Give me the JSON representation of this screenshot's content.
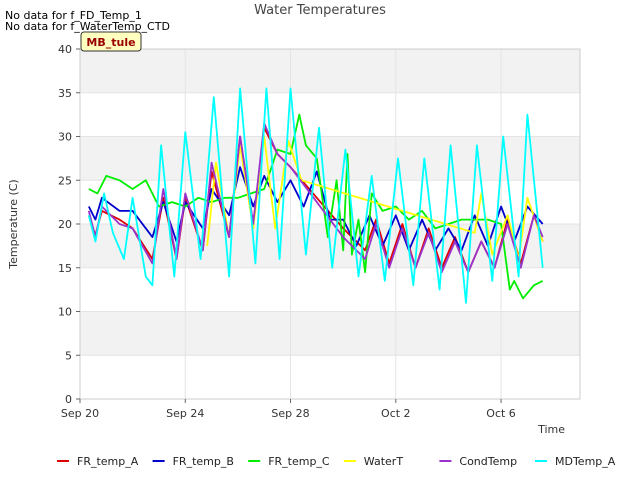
{
  "notes": [
    "No data for f_FD_Temp_1",
    "No data for f_WaterTemp_CTD"
  ],
  "badge": "MB_tule",
  "chart_data": {
    "type": "line",
    "title": "Water Temperatures",
    "xlabel": "Time",
    "ylabel": "Temperature (C)",
    "xlim": [
      "2023-09-20",
      "2023-10-09"
    ],
    "ylim": [
      0,
      40
    ],
    "x_ticks": [
      {
        "date": "2023-09-20",
        "label": "Sep 20"
      },
      {
        "date": "2023-09-24",
        "label": "Sep 24"
      },
      {
        "date": "2023-09-28",
        "label": "Sep 28"
      },
      {
        "date": "2023-10-02",
        "label": "Oct 2"
      },
      {
        "date": "2023-10-06",
        "label": "Oct 6"
      }
    ],
    "y_ticks": [
      0,
      5,
      10,
      15,
      20,
      25,
      30,
      35,
      40
    ],
    "grid": true,
    "legend_position": "bottom",
    "series": [
      {
        "name": "FR_temp_A",
        "color": "#dd0000",
        "points": [
          [
            "2023-09-20 08:00",
            21.0
          ],
          [
            "2023-09-20 14:00",
            18.7
          ],
          [
            "2023-09-20 20:00",
            21.5
          ],
          [
            "2023-09-21 12:00",
            20.5
          ],
          [
            "2023-09-22 00:00",
            19.5
          ],
          [
            "2023-09-22 18:00",
            16.0
          ],
          [
            "2023-09-23 04:00",
            23.0
          ],
          [
            "2023-09-23 16:00",
            16.0
          ],
          [
            "2023-09-24 00:00",
            23.0
          ],
          [
            "2023-09-24 16:00",
            17.0
          ],
          [
            "2023-09-25 00:00",
            26.0
          ],
          [
            "2023-09-25 16:00",
            18.5
          ],
          [
            "2023-09-26 02:00",
            30.0
          ],
          [
            "2023-09-26 14:00",
            20.0
          ],
          [
            "2023-09-27 00:00",
            31.0
          ],
          [
            "2023-09-27 12:00",
            28.0
          ],
          [
            "2023-09-28 00:00",
            26.5
          ],
          [
            "2023-09-29 00:00",
            23.0
          ],
          [
            "2023-09-30 00:00",
            19.5
          ],
          [
            "2023-09-30 20:00",
            17.0
          ],
          [
            "2023-10-01 06:00",
            20.5
          ],
          [
            "2023-10-01 18:00",
            15.5
          ],
          [
            "2023-10-02 06:00",
            20.0
          ],
          [
            "2023-10-02 18:00",
            15.0
          ],
          [
            "2023-10-03 06:00",
            19.5
          ],
          [
            "2023-10-03 18:00",
            15.0
          ],
          [
            "2023-10-04 06:00",
            18.5
          ],
          [
            "2023-10-04 18:00",
            14.5
          ],
          [
            "2023-10-05 06:00",
            18.0
          ],
          [
            "2023-10-05 18:00",
            15.0
          ],
          [
            "2023-10-06 06:00",
            20.5
          ],
          [
            "2023-10-06 18:00",
            15.5
          ],
          [
            "2023-10-07 06:00",
            21.0
          ],
          [
            "2023-10-07 14:00",
            18.0
          ]
        ]
      },
      {
        "name": "FR_temp_B",
        "color": "#0000cc",
        "points": [
          [
            "2023-09-20 08:00",
            22.0
          ],
          [
            "2023-09-20 14:00",
            20.5
          ],
          [
            "2023-09-20 20:00",
            23.0
          ],
          [
            "2023-09-21 12:00",
            21.5
          ],
          [
            "2023-09-22 00:00",
            21.5
          ],
          [
            "2023-09-22 18:00",
            18.5
          ],
          [
            "2023-09-23 04:00",
            22.5
          ],
          [
            "2023-09-23 16:00",
            18.0
          ],
          [
            "2023-09-24 00:00",
            22.5
          ],
          [
            "2023-09-24 16:00",
            19.5
          ],
          [
            "2023-09-25 00:00",
            24.0
          ],
          [
            "2023-09-25 16:00",
            21.0
          ],
          [
            "2023-09-26 02:00",
            26.5
          ],
          [
            "2023-09-26 14:00",
            22.0
          ],
          [
            "2023-09-27 00:00",
            25.5
          ],
          [
            "2023-09-27 12:00",
            22.5
          ],
          [
            "2023-09-28 00:00",
            25.0
          ],
          [
            "2023-09-28 12:00",
            22.0
          ],
          [
            "2023-09-29 00:00",
            26.0
          ],
          [
            "2023-09-29 12:00",
            20.5
          ],
          [
            "2023-09-30 00:00",
            20.5
          ],
          [
            "2023-09-30 12:00",
            17.5
          ],
          [
            "2023-10-01 00:00",
            21.0
          ],
          [
            "2023-10-01 12:00",
            17.5
          ],
          [
            "2023-10-02 00:00",
            21.0
          ],
          [
            "2023-10-02 12:00",
            17.0
          ],
          [
            "2023-10-03 00:00",
            20.5
          ],
          [
            "2023-10-03 12:00",
            17.0
          ],
          [
            "2023-10-04 00:00",
            19.5
          ],
          [
            "2023-10-04 12:00",
            17.0
          ],
          [
            "2023-10-05 00:00",
            21.0
          ],
          [
            "2023-10-05 12:00",
            17.5
          ],
          [
            "2023-10-06 00:00",
            22.0
          ],
          [
            "2023-10-06 12:00",
            18.0
          ],
          [
            "2023-10-07 00:00",
            22.0
          ],
          [
            "2023-10-07 14:00",
            20.0
          ]
        ]
      },
      {
        "name": "FR_temp_C",
        "color": "#00ee00",
        "points": [
          [
            "2023-09-20 08:00",
            24.0
          ],
          [
            "2023-09-20 16:00",
            23.5
          ],
          [
            "2023-09-21 00:00",
            25.5
          ],
          [
            "2023-09-21 12:00",
            25.0
          ],
          [
            "2023-09-22 00:00",
            24.0
          ],
          [
            "2023-09-22 12:00",
            25.0
          ],
          [
            "2023-09-23 00:00",
            22.0
          ],
          [
            "2023-09-23 12:00",
            22.5
          ],
          [
            "2023-09-24 00:00",
            22.0
          ],
          [
            "2023-09-24 12:00",
            23.0
          ],
          [
            "2023-09-25 00:00",
            22.5
          ],
          [
            "2023-09-25 12:00",
            23.0
          ],
          [
            "2023-09-26 00:00",
            23.0
          ],
          [
            "2023-09-26 12:00",
            23.5
          ],
          [
            "2023-09-27 00:00",
            24.0
          ],
          [
            "2023-09-27 12:00",
            28.5
          ],
          [
            "2023-09-28 00:00",
            28.0
          ],
          [
            "2023-09-28 08:00",
            32.5
          ],
          [
            "2023-09-28 14:00",
            29.0
          ],
          [
            "2023-09-29 00:00",
            27.5
          ],
          [
            "2023-09-29 10:00",
            18.5
          ],
          [
            "2023-09-29 18:00",
            25.0
          ],
          [
            "2023-09-30 00:00",
            17.0
          ],
          [
            "2023-09-30 04:00",
            28.0
          ],
          [
            "2023-09-30 08:00",
            16.5
          ],
          [
            "2023-09-30 14:00",
            20.5
          ],
          [
            "2023-09-30 20:00",
            14.5
          ],
          [
            "2023-10-01 02:00",
            23.5
          ],
          [
            "2023-10-01 12:00",
            21.5
          ],
          [
            "2023-10-02 00:00",
            22.0
          ],
          [
            "2023-10-02 12:00",
            20.5
          ],
          [
            "2023-10-03 00:00",
            21.5
          ],
          [
            "2023-10-03 12:00",
            19.5
          ],
          [
            "2023-10-04 00:00",
            20.0
          ],
          [
            "2023-10-04 12:00",
            20.5
          ],
          [
            "2023-10-05 00:00",
            20.5
          ],
          [
            "2023-10-05 12:00",
            20.5
          ],
          [
            "2023-10-06 00:00",
            20.0
          ],
          [
            "2023-10-06 08:00",
            12.5
          ],
          [
            "2023-10-06 12:00",
            13.5
          ],
          [
            "2023-10-06 20:00",
            11.5
          ],
          [
            "2023-10-07 06:00",
            13.0
          ],
          [
            "2023-10-07 14:00",
            13.5
          ]
        ]
      },
      {
        "name": "WaterT",
        "color": "#ffff00",
        "points": [
          [
            "2023-09-24 20:00",
            17.5
          ],
          [
            "2023-09-25 04:00",
            27.0
          ],
          [
            "2023-09-25 16:00",
            18.5
          ],
          [
            "2023-09-26 02:00",
            29.0
          ],
          [
            "2023-09-26 14:00",
            19.5
          ],
          [
            "2023-09-27 00:00",
            30.0
          ],
          [
            "2023-09-27 10:00",
            19.5
          ],
          [
            "2023-09-27 22:00",
            29.5
          ],
          [
            "2023-09-28 10:00",
            25.0
          ],
          [
            "2023-10-05 00:00",
            19.0
          ],
          [
            "2023-10-05 06:00",
            23.5
          ],
          [
            "2023-10-05 16:00",
            16.5
          ],
          [
            "2023-10-06 06:00",
            21.0
          ],
          [
            "2023-10-06 16:00",
            16.0
          ],
          [
            "2023-10-07 00:00",
            23.0
          ],
          [
            "2023-10-07 14:00",
            18.0
          ]
        ]
      },
      {
        "name": "CondTemp",
        "color": "#9933cc",
        "points": [
          [
            "2023-09-20 08:00",
            21.5
          ],
          [
            "2023-09-20 14:00",
            18.5
          ],
          [
            "2023-09-20 20:00",
            22.0
          ],
          [
            "2023-09-21 12:00",
            20.0
          ],
          [
            "2023-09-22 00:00",
            19.5
          ],
          [
            "2023-09-22 18:00",
            15.5
          ],
          [
            "2023-09-23 04:00",
            24.0
          ],
          [
            "2023-09-23 16:00",
            16.0
          ],
          [
            "2023-09-24 00:00",
            23.5
          ],
          [
            "2023-09-24 16:00",
            17.0
          ],
          [
            "2023-09-25 00:00",
            27.0
          ],
          [
            "2023-09-25 16:00",
            18.5
          ],
          [
            "2023-09-26 02:00",
            30.0
          ],
          [
            "2023-09-26 14:00",
            20.0
          ],
          [
            "2023-09-27 00:00",
            31.5
          ],
          [
            "2023-09-27 12:00",
            28.0
          ],
          [
            "2023-09-28 00:00",
            26.5
          ],
          [
            "2023-09-29 00:00",
            22.5
          ],
          [
            "2023-09-30 00:00",
            18.5
          ],
          [
            "2023-09-30 20:00",
            16.0
          ],
          [
            "2023-10-01 06:00",
            20.0
          ],
          [
            "2023-10-01 18:00",
            15.0
          ],
          [
            "2023-10-02 06:00",
            19.5
          ],
          [
            "2023-10-02 18:00",
            15.0
          ],
          [
            "2023-10-03 06:00",
            19.0
          ],
          [
            "2023-10-03 18:00",
            14.5
          ],
          [
            "2023-10-04 06:00",
            18.0
          ],
          [
            "2023-10-04 18:00",
            14.5
          ],
          [
            "2023-10-05 06:00",
            18.0
          ],
          [
            "2023-10-05 18:00",
            15.0
          ],
          [
            "2023-10-06 06:00",
            20.0
          ],
          [
            "2023-10-06 18:00",
            15.0
          ],
          [
            "2023-10-07 06:00",
            21.0
          ],
          [
            "2023-10-07 14:00",
            18.5
          ]
        ]
      },
      {
        "name": "MDTemp_A",
        "color": "#00ffff",
        "points": [
          [
            "2023-09-20 08:00",
            21.0
          ],
          [
            "2023-09-20 14:00",
            18.0
          ],
          [
            "2023-09-20 22:00",
            23.5
          ],
          [
            "2023-09-21 06:00",
            19.0
          ],
          [
            "2023-09-21 16:00",
            16.0
          ],
          [
            "2023-09-22 00:00",
            23.0
          ],
          [
            "2023-09-22 12:00",
            14.0
          ],
          [
            "2023-09-22 18:00",
            13.0
          ],
          [
            "2023-09-23 02:00",
            29.0
          ],
          [
            "2023-09-23 14:00",
            14.0
          ],
          [
            "2023-09-24 00:00",
            30.5
          ],
          [
            "2023-09-24 14:00",
            16.0
          ],
          [
            "2023-09-25 02:00",
            34.5
          ],
          [
            "2023-09-25 16:00",
            14.0
          ],
          [
            "2023-09-26 02:00",
            35.5
          ],
          [
            "2023-09-26 16:00",
            15.5
          ],
          [
            "2023-09-27 02:00",
            35.5
          ],
          [
            "2023-09-27 14:00",
            16.0
          ],
          [
            "2023-09-28 00:00",
            35.5
          ],
          [
            "2023-09-28 14:00",
            16.5
          ],
          [
            "2023-09-29 02:00",
            31.0
          ],
          [
            "2023-09-29 14:00",
            15.0
          ],
          [
            "2023-09-30 02:00",
            28.5
          ],
          [
            "2023-09-30 14:00",
            14.0
          ],
          [
            "2023-10-01 02:00",
            25.5
          ],
          [
            "2023-10-01 14:00",
            13.5
          ],
          [
            "2023-10-02 02:00",
            27.5
          ],
          [
            "2023-10-02 16:00",
            13.0
          ],
          [
            "2023-10-03 02:00",
            27.5
          ],
          [
            "2023-10-03 16:00",
            12.5
          ],
          [
            "2023-10-04 02:00",
            29.0
          ],
          [
            "2023-10-04 16:00",
            11.0
          ],
          [
            "2023-10-05 02:00",
            29.0
          ],
          [
            "2023-10-05 16:00",
            13.5
          ],
          [
            "2023-10-06 02:00",
            30.0
          ],
          [
            "2023-10-06 16:00",
            14.0
          ],
          [
            "2023-10-07 00:00",
            32.5
          ],
          [
            "2023-10-07 14:00",
            15.0
          ]
        ]
      }
    ]
  }
}
